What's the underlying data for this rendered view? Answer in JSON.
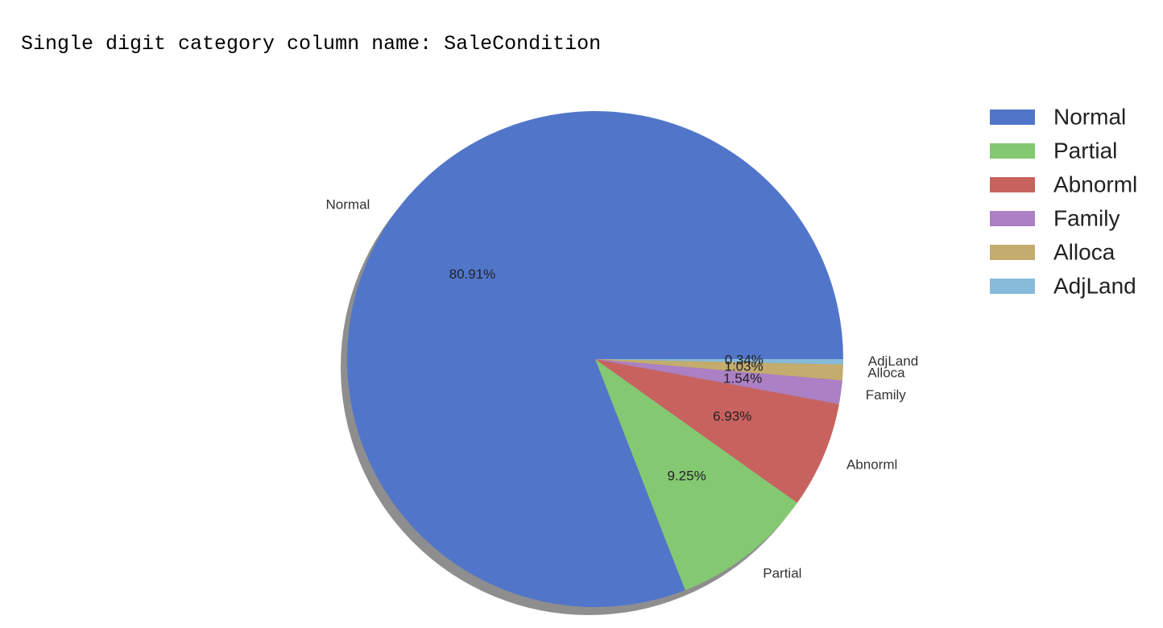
{
  "output": {
    "text": "Single digit category column name: SaleCondition"
  },
  "chart_data": {
    "type": "pie",
    "title": "",
    "categories": [
      "Normal",
      "Partial",
      "Abnorml",
      "Family",
      "Alloca",
      "AdjLand"
    ],
    "values": [
      80.91,
      9.25,
      6.93,
      1.54,
      1.03,
      0.34
    ],
    "percent_labels": [
      "80.91%",
      "9.25%",
      "6.93%",
      "1.54%",
      "1.03%",
      "0.34%"
    ],
    "colors": [
      "#5176c9",
      "#84c872",
      "#c8625f",
      "#ab80c4",
      "#c3ac6e",
      "#86bbd9"
    ],
    "shadow": true,
    "legend": {
      "position": "upper-right",
      "entries": [
        "Normal",
        "Partial",
        "Abnorml",
        "Family",
        "Alloca",
        "AdjLand"
      ]
    }
  }
}
